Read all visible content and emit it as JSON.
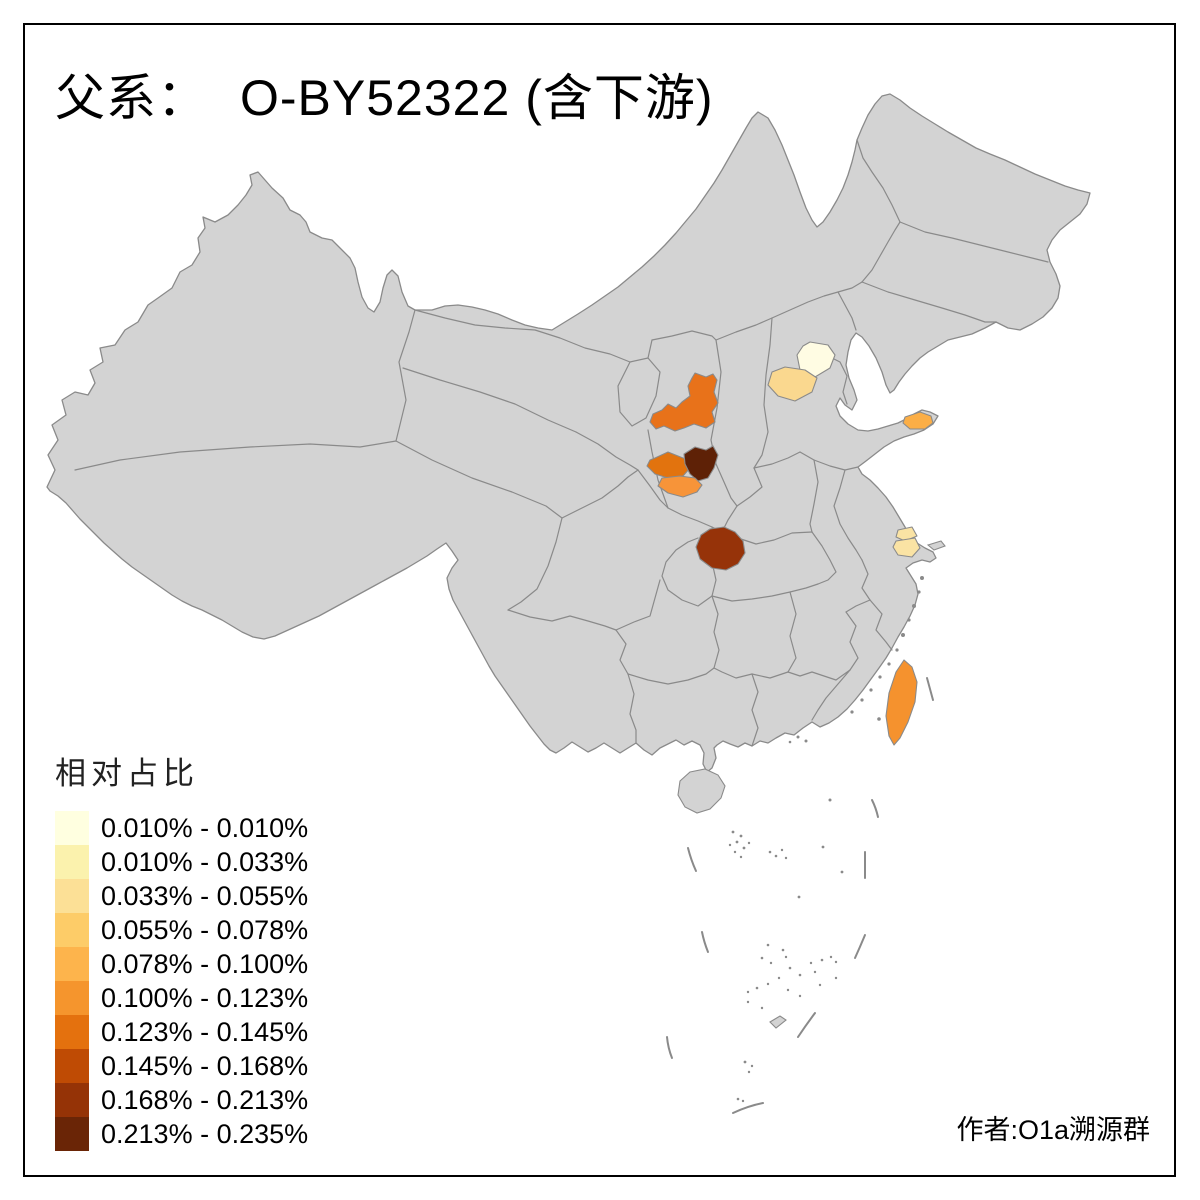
{
  "title": {
    "lineage_label": "父系：",
    "haplogroup": "O-BY52322",
    "downstream_note": "(含下游)"
  },
  "legend": {
    "title": "相对占比",
    "classes": [
      {
        "label": "0.010% - 0.010%",
        "color": "#FFFFE0"
      },
      {
        "label": "0.010% - 0.033%",
        "color": "#FBF2AD"
      },
      {
        "label": "0.033% - 0.055%",
        "color": "#FCE096"
      },
      {
        "label": "0.055% - 0.078%",
        "color": "#FDCC68"
      },
      {
        "label": "0.078% - 0.100%",
        "color": "#FDB44C"
      },
      {
        "label": "0.100% - 0.123%",
        "color": "#F5952D"
      },
      {
        "label": "0.123% - 0.145%",
        "color": "#E4710E"
      },
      {
        "label": "0.145% - 0.168%",
        "color": "#BF4B04"
      },
      {
        "label": "0.168% - 0.213%",
        "color": "#953306"
      },
      {
        "label": "0.213% - 0.235%",
        "color": "#6A2506"
      }
    ]
  },
  "caption": {
    "author": "作者:O1a溯源群"
  },
  "map": {
    "sea_color": "#FFFFFF",
    "land_color": "#D3D3D3",
    "border_color": "#8A8A8A",
    "frame_color": "#000000",
    "regions": [
      {
        "id": "beijing",
        "name": "北京",
        "color": "#FFFCE3",
        "value_range": "0.010% - 0.010%"
      },
      {
        "id": "baoding",
        "name": "保定",
        "color": "#FAD88F",
        "value_range": "0.055% - 0.078%"
      },
      {
        "id": "weihai",
        "name": "威海",
        "color": "#FBAE46",
        "value_range": "0.078% - 0.100%"
      },
      {
        "id": "wuxi",
        "name": "无锡",
        "color": "#FAE3A4",
        "value_range": "0.033% - 0.055%"
      },
      {
        "id": "suzhou",
        "name": "苏州",
        "color": "#FAE3A4",
        "value_range": "0.033% - 0.055%"
      },
      {
        "id": "yanan",
        "name": "延安",
        "color": "#E8721A",
        "value_range": "0.123% - 0.145%"
      },
      {
        "id": "xianyang",
        "name": "咸阳",
        "color": "#E2730E",
        "value_range": "0.123% - 0.145%"
      },
      {
        "id": "xian",
        "name": "西安",
        "color": "#F79439",
        "value_range": "0.100% - 0.123%"
      },
      {
        "id": "weinan",
        "name": "渭南",
        "color": "#5E2106",
        "value_range": "0.213% - 0.235%"
      },
      {
        "id": "shiyan",
        "name": "十堰",
        "color": "#963309",
        "value_range": "0.168% - 0.213%"
      },
      {
        "id": "taiwan",
        "name": "台湾",
        "color": "#F5922E",
        "value_range": "0.100% - 0.123%"
      }
    ]
  },
  "chart_data": {
    "type": "choropleth",
    "title": "父系： O-BY52322 (含下游)",
    "legend_title": "相对占比",
    "legend_position": "bottom-left",
    "classes": [
      "0.010% - 0.010%",
      "0.010% - 0.033%",
      "0.033% - 0.055%",
      "0.055% - 0.078%",
      "0.078% - 0.100%",
      "0.100% - 0.123%",
      "0.123% - 0.145%",
      "0.145% - 0.168%",
      "0.168% - 0.213%",
      "0.213% - 0.235%"
    ],
    "regions": [
      {
        "name": "北京",
        "value_range": "0.010% - 0.010%"
      },
      {
        "name": "保定",
        "value_range": "0.055% - 0.078%"
      },
      {
        "name": "威海",
        "value_range": "0.078% - 0.100%"
      },
      {
        "name": "无锡",
        "value_range": "0.033% - 0.055%"
      },
      {
        "name": "苏州",
        "value_range": "0.033% - 0.055%"
      },
      {
        "name": "延安",
        "value_range": "0.123% - 0.145%"
      },
      {
        "name": "咸阳",
        "value_range": "0.123% - 0.145%"
      },
      {
        "name": "西安",
        "value_range": "0.100% - 0.123%"
      },
      {
        "name": "渭南",
        "value_range": "0.213% - 0.235%"
      },
      {
        "name": "十堰",
        "value_range": "0.168% - 0.213%"
      },
      {
        "name": "台湾",
        "value_range": "0.100% - 0.123%"
      }
    ]
  }
}
